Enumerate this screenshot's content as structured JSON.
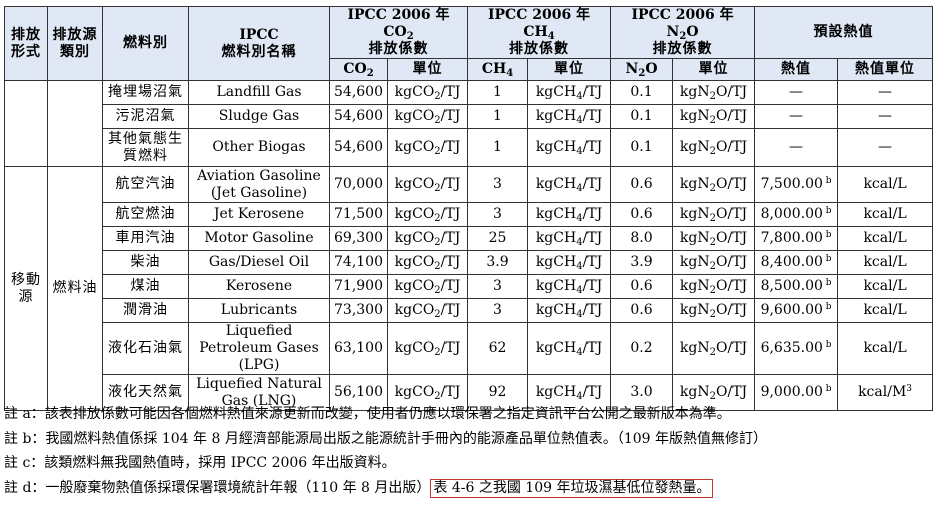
{
  "headers": {
    "emission_type": "排放形式",
    "source_category": "排放源類別",
    "fuel_type": "燃料別",
    "ipcc_fuel_name_1": "IPCC",
    "ipcc_fuel_name_2": "燃料別名稱",
    "co2_group_1": "IPCC 2006 年 CO₂",
    "ch4_group_1": "IPCC 2006 年 CH₄",
    "n2o_group_1": "IPCC 2006 年 N₂O",
    "factor_suffix": "排放係數",
    "heat_group": "預設熱值",
    "co2": "CO₂",
    "ch4": "CH₄",
    "n2o": "N₂O",
    "unit": "單位",
    "heat_value": "熱值",
    "heat_unit": "熱值單位"
  },
  "group_mobile": "移動源",
  "subgroup_fuel_oil": "燃料油",
  "rows": [
    {
      "fuel": "掩埋場沼氣",
      "ipcc": "Landfill Gas",
      "co2": "54,600",
      "co2_unit": "kgCO₂/TJ",
      "ch4": "1",
      "ch4_unit": "kgCH₄/TJ",
      "n2o": "0.1",
      "n2o_unit": "kgN₂O/TJ",
      "heat": "—",
      "heat_sup": "",
      "heat_unit": "—"
    },
    {
      "fuel": "污泥沼氣",
      "ipcc": "Sludge Gas",
      "co2": "54,600",
      "co2_unit": "kgCO₂/TJ",
      "ch4": "1",
      "ch4_unit": "kgCH₄/TJ",
      "n2o": "0.1",
      "n2o_unit": "kgN₂O/TJ",
      "heat": "—",
      "heat_sup": "",
      "heat_unit": "—"
    },
    {
      "fuel": "其他氣態生質燃料",
      "ipcc": "Other Biogas",
      "co2": "54,600",
      "co2_unit": "kgCO₂/TJ",
      "ch4": "1",
      "ch4_unit": "kgCH₄/TJ",
      "n2o": "0.1",
      "n2o_unit": "kgN₂O/TJ",
      "heat": "—",
      "heat_sup": "",
      "heat_unit": "—"
    },
    {
      "fuel": "航空汽油",
      "ipcc": "Aviation Gasoline (Jet Gasoline)",
      "co2": "70,000",
      "co2_unit": "kgCO₂/TJ",
      "ch4": "3",
      "ch4_unit": "kgCH₄/TJ",
      "n2o": "0.6",
      "n2o_unit": "kgN₂O/TJ",
      "heat": "7,500.00",
      "heat_sup": "b",
      "heat_unit": "kcal/L"
    },
    {
      "fuel": "航空燃油",
      "ipcc": "Jet Kerosene",
      "co2": "71,500",
      "co2_unit": "kgCO₂/TJ",
      "ch4": "3",
      "ch4_unit": "kgCH₄/TJ",
      "n2o": "0.6",
      "n2o_unit": "kgN₂O/TJ",
      "heat": "8,000.00",
      "heat_sup": "b",
      "heat_unit": "kcal/L"
    },
    {
      "fuel": "車用汽油",
      "ipcc": "Motor Gasoline",
      "co2": "69,300",
      "co2_unit": "kgCO₂/TJ",
      "ch4": "25",
      "ch4_unit": "kgCH₄/TJ",
      "n2o": "8.0",
      "n2o_unit": "kgN₂O/TJ",
      "heat": "7,800.00",
      "heat_sup": "b",
      "heat_unit": "kcal/L"
    },
    {
      "fuel": "柴油",
      "ipcc": "Gas/Diesel Oil",
      "co2": "74,100",
      "co2_unit": "kgCO₂/TJ",
      "ch4": "3.9",
      "ch4_unit": "kgCH₄/TJ",
      "n2o": "3.9",
      "n2o_unit": "kgN₂O/TJ",
      "heat": "8,400.00",
      "heat_sup": "b",
      "heat_unit": "kcal/L"
    },
    {
      "fuel": "煤油",
      "ipcc": "Kerosene",
      "co2": "71,900",
      "co2_unit": "kgCO₂/TJ",
      "ch4": "3",
      "ch4_unit": "kgCH₄/TJ",
      "n2o": "0.6",
      "n2o_unit": "kgN₂O/TJ",
      "heat": "8,500.00",
      "heat_sup": "b",
      "heat_unit": "kcal/L"
    },
    {
      "fuel": "潤滑油",
      "ipcc": "Lubricants",
      "co2": "73,300",
      "co2_unit": "kgCO₂/TJ",
      "ch4": "3",
      "ch4_unit": "kgCH₄/TJ",
      "n2o": "0.6",
      "n2o_unit": "kgN₂O/TJ",
      "heat": "9,600.00",
      "heat_sup": "b",
      "heat_unit": "kcal/L"
    },
    {
      "fuel": "液化石油氣",
      "ipcc": "Liquefied Petroleum Gases (LPG)",
      "co2": "63,100",
      "co2_unit": "kgCO₂/TJ",
      "ch4": "62",
      "ch4_unit": "kgCH₄/TJ",
      "n2o": "0.2",
      "n2o_unit": "kgN₂O/TJ",
      "heat": "6,635.00",
      "heat_sup": "b",
      "heat_unit": "kcal/L"
    },
    {
      "fuel": "液化天然氣",
      "ipcc": "Liquefied Natural Gas (LNG)",
      "co2": "56,100",
      "co2_unit": "kgCO₂/TJ",
      "ch4": "92",
      "ch4_unit": "kgCH₄/TJ",
      "n2o": "3.0",
      "n2o_unit": "kgN₂O/TJ",
      "heat": "9,000.00",
      "heat_sup": "b",
      "heat_unit": "kcal/M³"
    }
  ],
  "notes": {
    "a": "註 a：該表排放係數可能因各個燃料熱值來源更新而改變，使用者仍應以環保署之指定資訊平台公開之最新版本為準。",
    "b": "註 b：我國燃料熱值係採 104 年 8 月經濟部能源局出版之能源統計手冊內的能源產品單位熱值表。（109 年版熱值無修訂）",
    "c": "註 c：該類燃料無我國熱值時，採用 IPCC 2006 年出版資料。",
    "d_main": "註 d：一般廢棄物熱值係採環保署環境統計年報（110 年 8 月出版）",
    "d_highlight": "表 4-6 之我國 109 年垃圾濕基低位發熱量。",
    "highlight_color": "#c0392b"
  },
  "colors": {
    "header_bg": "#dfe8f4",
    "border": "#333333"
  }
}
